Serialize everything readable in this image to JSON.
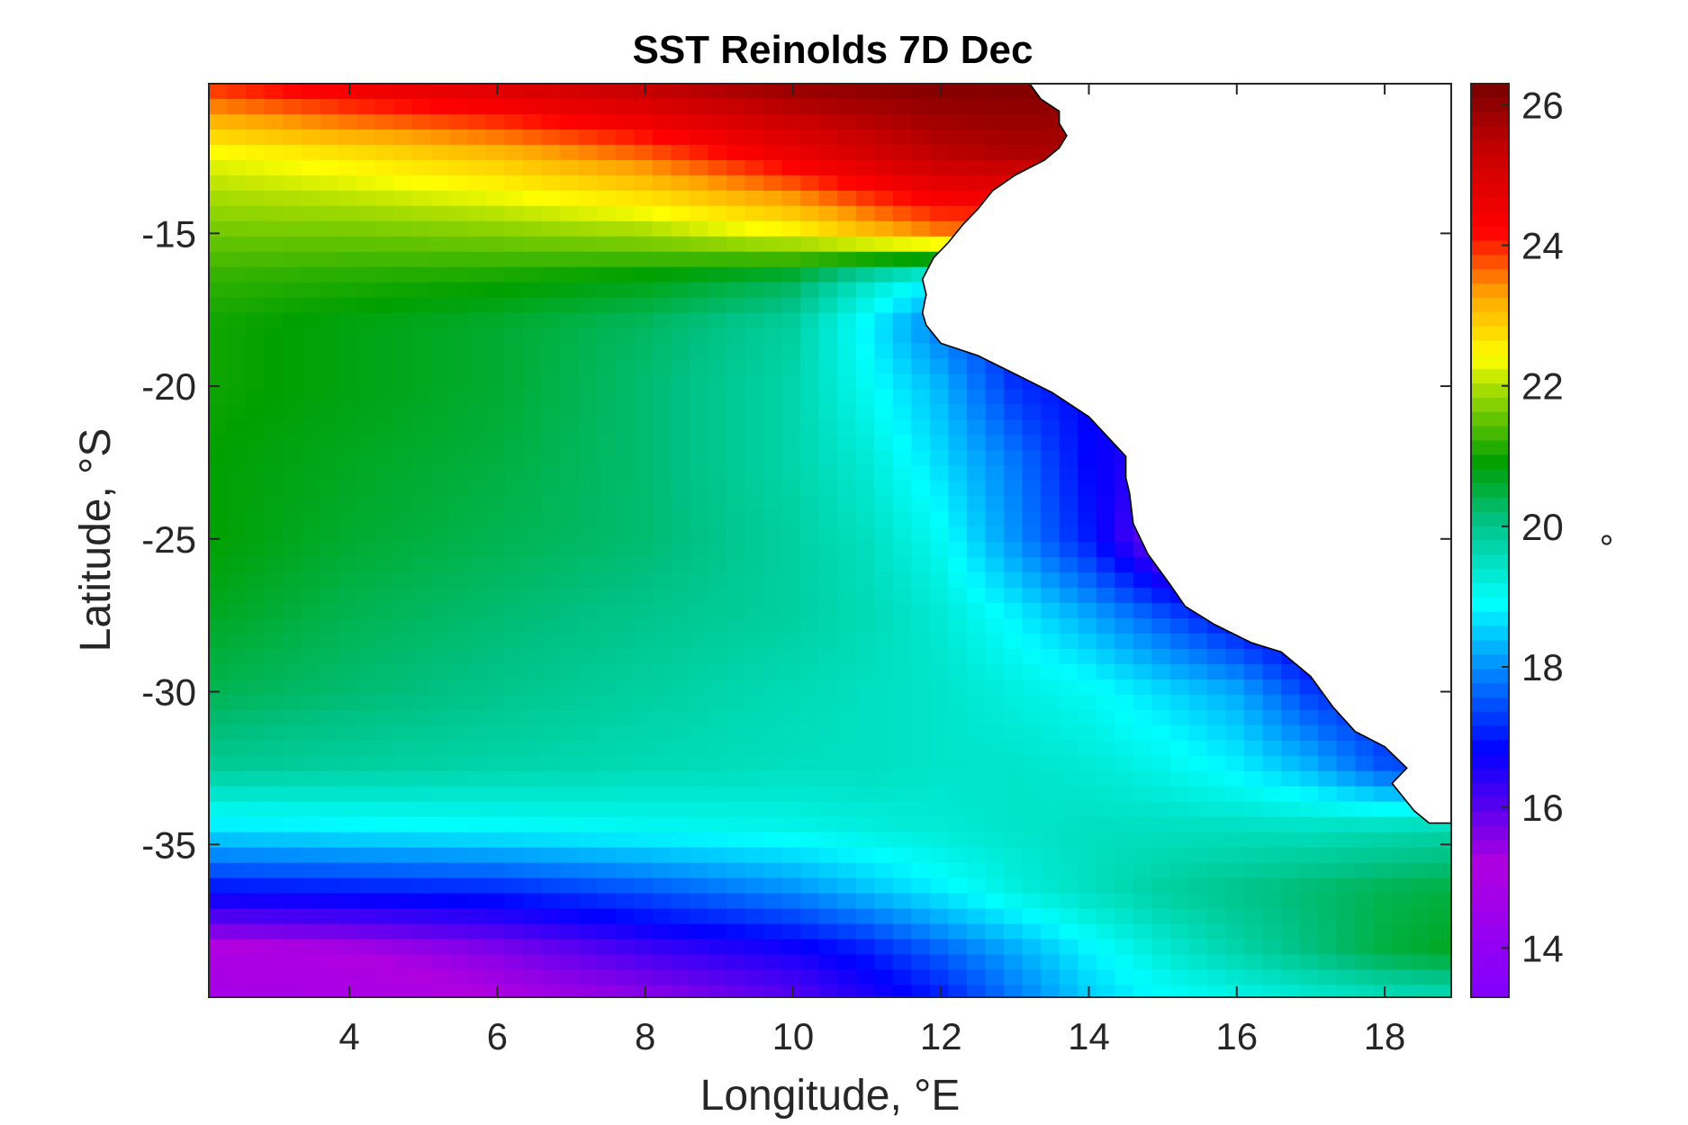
{
  "chart_data": {
    "type": "heatmap",
    "title": "SST Reinolds 7D Dec",
    "xlabel": "Longitude, °E",
    "ylabel": "Latitude, °S",
    "colorbar_label": "°",
    "xlim": [
      2.1,
      18.9
    ],
    "ylim": [
      -40.0,
      -10.1
    ],
    "clim": [
      13.3,
      26.3
    ],
    "x_ticks": [
      4,
      6,
      8,
      10,
      12,
      14,
      16,
      18
    ],
    "y_ticks": [
      -15,
      -20,
      -25,
      -30,
      -35
    ],
    "colorbar_ticks": [
      14,
      16,
      18,
      20,
      22,
      24,
      26
    ],
    "grid": false,
    "land_color": "#ffffff",
    "coastline_color": "#000000",
    "colormap": [
      {
        "value": 13.3,
        "color": "#8000ff"
      },
      {
        "value": 15.2,
        "color": "#b000e0"
      },
      {
        "value": 16.8,
        "color": "#0000ff"
      },
      {
        "value": 18.0,
        "color": "#0090ff"
      },
      {
        "value": 18.9,
        "color": "#00ffff"
      },
      {
        "value": 20.1,
        "color": "#00c080"
      },
      {
        "value": 20.9,
        "color": "#00a000"
      },
      {
        "value": 22.0,
        "color": "#b0e000"
      },
      {
        "value": 22.4,
        "color": "#ffff00"
      },
      {
        "value": 23.3,
        "color": "#ffa500"
      },
      {
        "value": 24.2,
        "color": "#ff0000"
      },
      {
        "value": 25.3,
        "color": "#c80000"
      },
      {
        "value": 26.3,
        "color": "#780000"
      }
    ],
    "coastline": [
      [
        13.2,
        -10.1
      ],
      [
        13.35,
        -10.6
      ],
      [
        13.6,
        -11.0
      ],
      [
        13.6,
        -11.4
      ],
      [
        13.7,
        -11.8
      ],
      [
        13.6,
        -12.2
      ],
      [
        13.4,
        -12.6
      ],
      [
        13.0,
        -13.1
      ],
      [
        12.7,
        -13.6
      ],
      [
        12.5,
        -14.2
      ],
      [
        12.3,
        -14.7
      ],
      [
        12.1,
        -15.3
      ],
      [
        11.9,
        -15.8
      ],
      [
        11.75,
        -16.5
      ],
      [
        11.8,
        -17.0
      ],
      [
        11.75,
        -17.6
      ],
      [
        11.8,
        -18.0
      ],
      [
        12.0,
        -18.6
      ],
      [
        12.5,
        -19.0
      ],
      [
        13.0,
        -19.6
      ],
      [
        13.5,
        -20.2
      ],
      [
        14.0,
        -21.0
      ],
      [
        14.5,
        -22.3
      ],
      [
        14.5,
        -23.0
      ],
      [
        14.55,
        -23.5
      ],
      [
        14.6,
        -24.5
      ],
      [
        14.8,
        -25.5
      ],
      [
        15.1,
        -26.5
      ],
      [
        15.3,
        -27.2
      ],
      [
        15.7,
        -27.8
      ],
      [
        16.2,
        -28.4
      ],
      [
        16.6,
        -28.7
      ],
      [
        17.0,
        -29.5
      ],
      [
        17.3,
        -30.5
      ],
      [
        17.6,
        -31.3
      ],
      [
        18.0,
        -31.8
      ],
      [
        18.3,
        -32.5
      ],
      [
        18.1,
        -33.0
      ],
      [
        18.4,
        -33.9
      ],
      [
        18.6,
        -34.3
      ],
      [
        18.9,
        -34.3
      ]
    ],
    "sst_grid": {
      "lon": [
        2.1,
        4.0,
        6.0,
        8.0,
        10.0,
        11.0,
        12.0,
        13.0,
        14.0,
        15.0,
        16.0,
        17.0,
        18.0,
        18.9
      ],
      "lat": [
        -10.1,
        -12.5,
        -15.0,
        -16.5,
        -18.0,
        -20.0,
        -22.5,
        -25.0,
        -27.5,
        -30.0,
        -32.5,
        -34.5,
        -36.5,
        -38.5,
        -40.0
      ],
      "values": [
        [
          24.0,
          24.6,
          25.0,
          25.5,
          26.0,
          26.1,
          26.2,
          26.2,
          26.2,
          26.2,
          26.2,
          26.2,
          26.2,
          26.2
        ],
        [
          22.3,
          22.6,
          23.0,
          23.6,
          24.5,
          25.0,
          25.4,
          25.6,
          25.6,
          25.6,
          25.6,
          25.6,
          25.6,
          25.6
        ],
        [
          21.6,
          21.6,
          21.7,
          21.9,
          22.4,
          23.0,
          23.5,
          23.5,
          23.5,
          23.5,
          23.5,
          23.5,
          23.5,
          23.5
        ],
        [
          21.2,
          21.1,
          21.0,
          20.8,
          20.4,
          19.5,
          18.8,
          18.8,
          18.8,
          18.8,
          18.8,
          18.8,
          18.8,
          18.8
        ],
        [
          21.0,
          20.8,
          20.6,
          20.3,
          19.8,
          18.8,
          17.8,
          17.0,
          17.0,
          17.0,
          17.0,
          17.0,
          17.0,
          17.0
        ],
        [
          21.0,
          20.8,
          20.6,
          20.2,
          19.7,
          19.0,
          18.3,
          17.2,
          16.8,
          16.8,
          16.8,
          16.8,
          16.8,
          16.8
        ],
        [
          20.9,
          20.7,
          20.5,
          20.2,
          19.7,
          19.3,
          18.6,
          17.8,
          16.8,
          16.3,
          16.3,
          16.3,
          16.3,
          16.3
        ],
        [
          20.9,
          20.6,
          20.4,
          20.2,
          19.8,
          19.5,
          19.0,
          18.0,
          17.0,
          15.6,
          15.8,
          15.8,
          15.8,
          15.8
        ],
        [
          20.7,
          20.4,
          20.2,
          20.0,
          19.8,
          19.6,
          19.3,
          18.8,
          18.2,
          17.5,
          16.8,
          16.3,
          16.3,
          16.3
        ],
        [
          20.4,
          20.2,
          20.0,
          19.8,
          19.6,
          19.5,
          19.4,
          19.2,
          19.0,
          18.6,
          18.2,
          17.3,
          16.9,
          16.9
        ],
        [
          19.9,
          19.8,
          19.7,
          19.6,
          19.5,
          19.5,
          19.4,
          19.4,
          19.3,
          19.1,
          18.8,
          18.3,
          17.5,
          17.3
        ],
        [
          18.7,
          18.8,
          18.9,
          19.0,
          19.1,
          19.2,
          19.3,
          19.4,
          19.5,
          19.5,
          19.5,
          19.5,
          19.6,
          19.7
        ],
        [
          16.9,
          17.0,
          17.1,
          17.5,
          18.0,
          18.4,
          18.8,
          19.2,
          19.5,
          19.8,
          20.0,
          20.2,
          20.4,
          20.5
        ],
        [
          15.0,
          15.2,
          15.6,
          16.2,
          16.6,
          17.0,
          17.6,
          18.2,
          18.8,
          19.3,
          19.7,
          20.1,
          20.5,
          20.7
        ],
        [
          14.8,
          14.9,
          15.2,
          15.5,
          16.0,
          16.5,
          17.0,
          17.8,
          18.5,
          18.9,
          19.1,
          19.3,
          19.5,
          19.6
        ]
      ]
    }
  }
}
